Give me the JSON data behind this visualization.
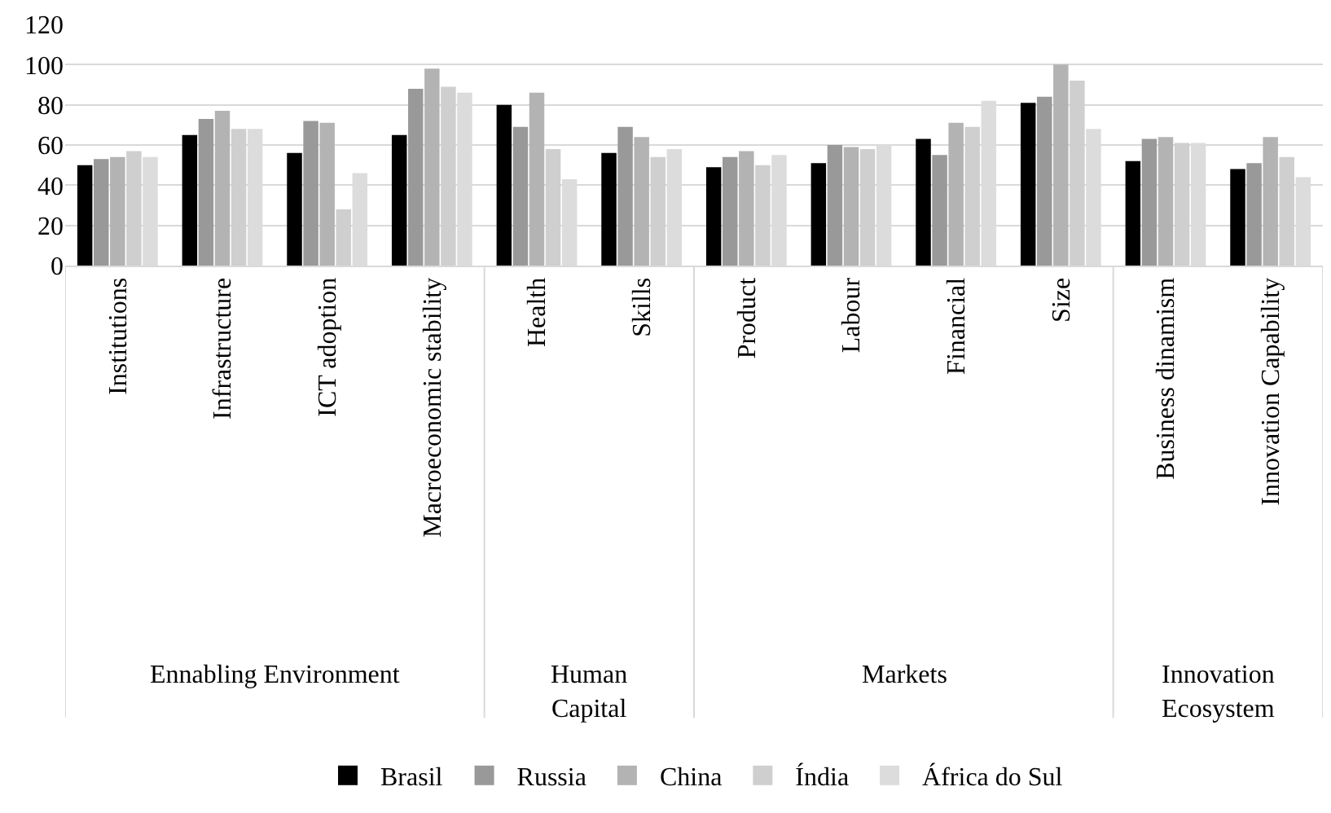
{
  "chart_data": {
    "type": "bar",
    "categories": [
      "Institutions",
      "Infrastructure",
      "ICT adoption",
      "Macroeconomic stability",
      "Health",
      "Skills",
      "Product",
      "Labour",
      "Financial",
      "Size",
      "Business dinamism",
      "Innovation Capability"
    ],
    "series": [
      {
        "name": "Brasil",
        "color": "#000000",
        "values": [
          50,
          65,
          56,
          65,
          80,
          56,
          49,
          51,
          63,
          81,
          52,
          48
        ]
      },
      {
        "name": "Russia",
        "color": "#999999",
        "values": [
          53,
          73,
          72,
          88,
          69,
          69,
          54,
          60,
          55,
          84,
          63,
          51
        ]
      },
      {
        "name": "China",
        "color": "#b3b3b3",
        "values": [
          54,
          77,
          71,
          98,
          86,
          64,
          57,
          59,
          71,
          100,
          64,
          64
        ]
      },
      {
        "name": "Índia",
        "color": "#cfcfcf",
        "values": [
          57,
          68,
          28,
          89,
          58,
          54,
          50,
          58,
          69,
          92,
          61,
          54
        ]
      },
      {
        "name": "África do Sul",
        "color": "#dcdcdc",
        "values": [
          54,
          68,
          46,
          86,
          43,
          58,
          55,
          60,
          82,
          68,
          61,
          44
        ]
      }
    ],
    "annotations": [
      "Ennabling Environment",
      "Human Capital",
      "Markets",
      "Innovation Ecosystem"
    ],
    "ylim": [
      0,
      120
    ],
    "yticks": [
      0,
      20,
      40,
      60,
      80,
      100,
      120
    ],
    "grid": "y",
    "legend": "bottom"
  }
}
